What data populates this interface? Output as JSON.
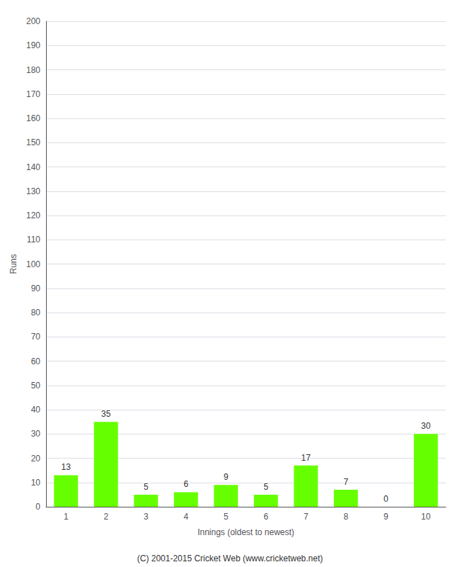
{
  "chart_data": {
    "type": "bar",
    "xlabel": "Innings (oldest to newest)",
    "ylabel": "Runs",
    "categories": [
      "1",
      "2",
      "3",
      "4",
      "5",
      "6",
      "7",
      "8",
      "9",
      "10"
    ],
    "values": [
      13,
      35,
      5,
      6,
      9,
      5,
      17,
      7,
      0,
      30
    ],
    "color": "#66ff00",
    "ylim": [
      0,
      200
    ],
    "yticks": [
      0,
      10,
      20,
      30,
      40,
      50,
      60,
      70,
      80,
      90,
      100,
      110,
      120,
      130,
      140,
      150,
      160,
      170,
      180,
      190,
      200
    ],
    "grid": true,
    "data_labels": true,
    "annotations": [
      "(C) 2001-2015 Cricket Web (www.cricketweb.net)"
    ]
  }
}
